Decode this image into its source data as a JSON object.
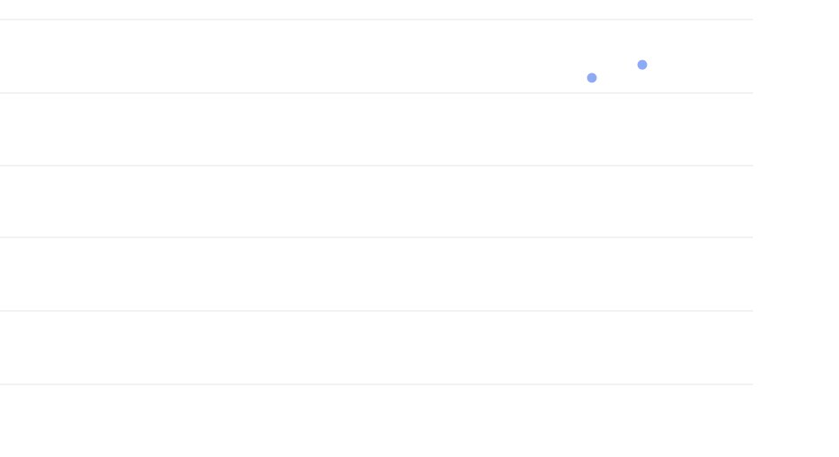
{
  "chart_data": {
    "type": "scatter",
    "title": "",
    "xlabel": "",
    "ylabel": "",
    "grid": true,
    "legend": "none",
    "xlim": [
      0,
      10
    ],
    "ylim": [
      0,
      5.3
    ],
    "series": [
      {
        "points": [
          {
            "x": 7.86,
            "y": 4.2
          },
          {
            "x": 8.53,
            "y": 4.38
          }
        ]
      }
    ]
  },
  "colors": {
    "background": "#ffffff",
    "grid": "#f2f2f2",
    "marker": "#8caaf5"
  }
}
